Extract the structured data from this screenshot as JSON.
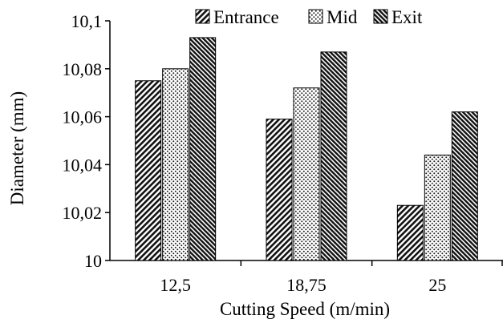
{
  "chart_data": {
    "type": "bar",
    "xlabel": "Cutting Speed (m/min)",
    "ylabel": "Diameter (mm)",
    "categories": [
      "12,5",
      "18,75",
      "25"
    ],
    "ylim": [
      10,
      10.1
    ],
    "yticks": [
      "10",
      "10,02",
      "10,04",
      "10,06",
      "10,08",
      "10,1"
    ],
    "grid": false,
    "legend_position": "top",
    "series": [
      {
        "name": "Entrance",
        "values": [
          10.075,
          10.059,
          10.023
        ],
        "pattern": "diagonal-hatch",
        "color": "#000000"
      },
      {
        "name": "Mid",
        "values": [
          10.08,
          10.072,
          10.044
        ],
        "pattern": "dots",
        "color": "#000000"
      },
      {
        "name": "Exit",
        "values": [
          10.093,
          10.087,
          10.062
        ],
        "pattern": "dense-diagonal-hatch",
        "color": "#000000"
      }
    ]
  }
}
